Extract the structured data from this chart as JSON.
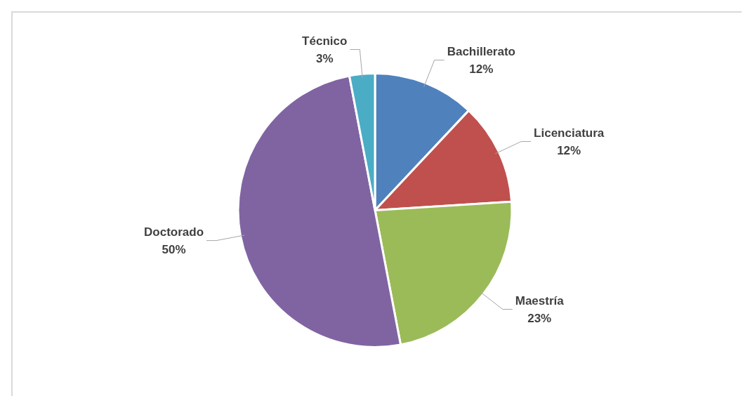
{
  "chart_data": {
    "type": "pie",
    "categories": [
      "Bachillerato",
      "Licenciatura",
      "Maestría",
      "Doctorado",
      "Técnico"
    ],
    "values": [
      12,
      12,
      23,
      50,
      3
    ],
    "colors": [
      "#4f81bd",
      "#c0504d",
      "#9bbb59",
      "#8064a2",
      "#4bacc6"
    ],
    "value_labels": [
      "12%",
      "12%",
      "23%",
      "50%",
      "3%"
    ],
    "legend": false
  }
}
